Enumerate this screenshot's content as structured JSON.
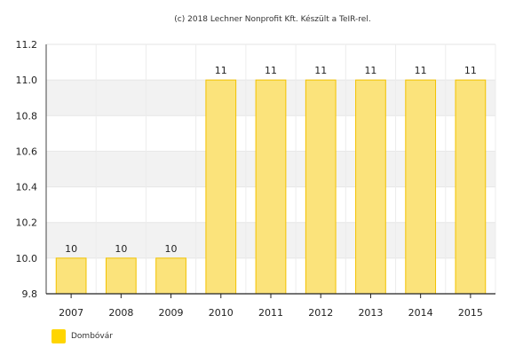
{
  "credit": "(c) 2018 Lechner Nonprofit Kft. Készült a TeIR-rel.",
  "colors": {
    "bar_fill": "#fbe37b",
    "bar_stroke": "#f2c200",
    "legend": "#ffd500",
    "band": "#f2f2f2"
  },
  "chart_data": {
    "type": "bar",
    "categories": [
      "2007",
      "2008",
      "2009",
      "2010",
      "2011",
      "2012",
      "2013",
      "2014",
      "2015"
    ],
    "series": [
      {
        "name": "Dombóvár",
        "values": [
          10,
          10,
          10,
          11,
          11,
          11,
          11,
          11,
          11
        ]
      }
    ],
    "data_labels": [
      "10",
      "10",
      "10",
      "11",
      "11",
      "11",
      "11",
      "11",
      "11"
    ],
    "ylim": [
      9.8,
      11.2
    ],
    "yticks": [
      "9.8",
      "10.0",
      "10.2",
      "10.4",
      "10.6",
      "10.8",
      "11.0",
      "11.2"
    ],
    "xlabel": "",
    "ylabel": "",
    "grid": true,
    "legend_position": "bottom-left"
  }
}
